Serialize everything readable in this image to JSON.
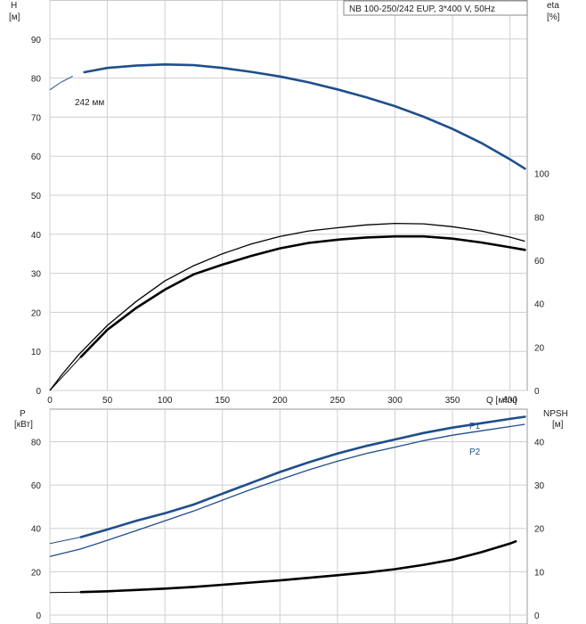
{
  "chart_data": [
    {
      "type": "line",
      "title": "NB 100-250/242 EUP, 3*400 V, 50Hz",
      "xlabel": "Q [м³/ч]",
      "ylabel_left": "H",
      "ylabel_left_unit": "[м]",
      "ylabel_right": "eta",
      "ylabel_right_unit": "[%]",
      "xlim": [
        0,
        415
      ],
      "ylim_left": [
        0,
        100
      ],
      "ylim_right": [
        0,
        180
      ],
      "x_ticks": [
        0,
        50,
        100,
        150,
        200,
        250,
        300,
        350,
        400
      ],
      "y_ticks_left": [
        0,
        10,
        20,
        30,
        40,
        50,
        60,
        70,
        80,
        90
      ],
      "y_ticks_right": [
        0,
        20,
        40,
        60,
        80,
        100
      ],
      "grid": true,
      "annotation": "242 мм",
      "series": [
        {
          "name": "242 мм",
          "axis": "left",
          "color": "#1f4e8c",
          "points": [
            [
              0,
              77
            ],
            [
              10,
              79
            ],
            [
              20,
              80.5
            ],
            [
              30,
              81.5
            ],
            [
              50,
              82.6
            ],
            [
              75,
              83.2
            ],
            [
              100,
              83.5
            ],
            [
              125,
              83.3
            ],
            [
              150,
              82.6
            ],
            [
              175,
              81.6
            ],
            [
              200,
              80.4
            ],
            [
              225,
              78.9
            ],
            [
              250,
              77.1
            ],
            [
              275,
              75.1
            ],
            [
              300,
              72.8
            ],
            [
              325,
              70.1
            ],
            [
              350,
              67
            ],
            [
              375,
              63.4
            ],
            [
              400,
              59.2
            ],
            [
              413,
              56.8
            ]
          ],
          "thin_until": 27
        },
        {
          "name": "",
          "axis": "right",
          "color": "#000000",
          "weight": "thin",
          "points": [
            [
              0,
              0
            ],
            [
              10,
              7
            ],
            [
              25,
              16.5
            ],
            [
              50,
              30
            ],
            [
              75,
              41
            ],
            [
              100,
              50.5
            ],
            [
              125,
              57.5
            ],
            [
              150,
              63
            ],
            [
              175,
              67.5
            ],
            [
              200,
              71
            ],
            [
              225,
              73.5
            ],
            [
              250,
              75
            ],
            [
              275,
              76.3
            ],
            [
              300,
              77
            ],
            [
              325,
              76.8
            ],
            [
              350,
              75.5
            ],
            [
              375,
              73.5
            ],
            [
              400,
              70.7
            ],
            [
              413,
              68.8
            ]
          ]
        },
        {
          "name": "",
          "axis": "right",
          "color": "#000000",
          "weight": "thick",
          "points": [
            [
              0,
              0
            ],
            [
              27,
              15.5
            ],
            [
              50,
              28
            ],
            [
              75,
              38
            ],
            [
              100,
              46.5
            ],
            [
              125,
              53.5
            ],
            [
              150,
              58
            ],
            [
              175,
              62
            ],
            [
              200,
              65.5
            ],
            [
              225,
              68
            ],
            [
              250,
              69.5
            ],
            [
              275,
              70.5
            ],
            [
              300,
              71
            ],
            [
              325,
              71
            ],
            [
              350,
              70
            ],
            [
              375,
              68.2
            ],
            [
              400,
              66
            ],
            [
              413,
              64.8
            ]
          ],
          "thin_until": 27
        }
      ]
    },
    {
      "type": "line",
      "ylabel_left": "P",
      "ylabel_left_unit": "[кВт]",
      "ylabel_right": "NPSH",
      "ylabel_right_unit": "[м]",
      "xlim": [
        0,
        415
      ],
      "ylim_left": [
        0,
        95
      ],
      "ylim_right": [
        0,
        47.5
      ],
      "y_ticks_left": [
        0,
        20,
        40,
        60,
        80
      ],
      "y_ticks_right": [
        0,
        10,
        20,
        30,
        40
      ],
      "grid": true,
      "series": [
        {
          "name": "P1",
          "axis": "left",
          "color": "#1f4e8c",
          "weight": "thick",
          "points": [
            [
              0,
              33
            ],
            [
              27,
              36
            ],
            [
              50,
              39.5
            ],
            [
              75,
              43.5
            ],
            [
              100,
              47
            ],
            [
              125,
              51
            ],
            [
              150,
              56
            ],
            [
              175,
              61
            ],
            [
              200,
              66
            ],
            [
              225,
              70.5
            ],
            [
              250,
              74.5
            ],
            [
              275,
              78
            ],
            [
              300,
              81
            ],
            [
              325,
              84
            ],
            [
              350,
              86.5
            ],
            [
              375,
              88.5
            ],
            [
              400,
              90.5
            ],
            [
              413,
              91.5
            ]
          ],
          "thin_until": 27
        },
        {
          "name": "P2",
          "axis": "left",
          "color": "#1f4e8c",
          "weight": "thin",
          "points": [
            [
              0,
              27
            ],
            [
              27,
              30.5
            ],
            [
              50,
              34.5
            ],
            [
              75,
              39
            ],
            [
              100,
              43.5
            ],
            [
              125,
              48
            ],
            [
              150,
              53
            ],
            [
              175,
              58
            ],
            [
              200,
              62.5
            ],
            [
              225,
              67
            ],
            [
              250,
              71
            ],
            [
              275,
              74.5
            ],
            [
              300,
              77.5
            ],
            [
              325,
              80.5
            ],
            [
              350,
              83
            ],
            [
              375,
              85
            ],
            [
              400,
              87
            ],
            [
              413,
              88
            ]
          ]
        },
        {
          "name": "",
          "axis": "right",
          "color": "#000000",
          "weight": "thick",
          "points": [
            [
              0,
              5.2
            ],
            [
              27,
              5.3
            ],
            [
              50,
              5.5
            ],
            [
              75,
              5.8
            ],
            [
              100,
              6.1
            ],
            [
              125,
              6.5
            ],
            [
              150,
              7.0
            ],
            [
              175,
              7.5
            ],
            [
              200,
              8.0
            ],
            [
              225,
              8.6
            ],
            [
              250,
              9.2
            ],
            [
              275,
              9.8
            ],
            [
              300,
              10.6
            ],
            [
              325,
              11.6
            ],
            [
              350,
              12.8
            ],
            [
              375,
              14.5
            ],
            [
              400,
              16.5
            ],
            [
              405,
              17
            ]
          ],
          "thin_until": 27
        }
      ]
    }
  ],
  "labels": {
    "p1": "P1",
    "p2": "P2"
  }
}
